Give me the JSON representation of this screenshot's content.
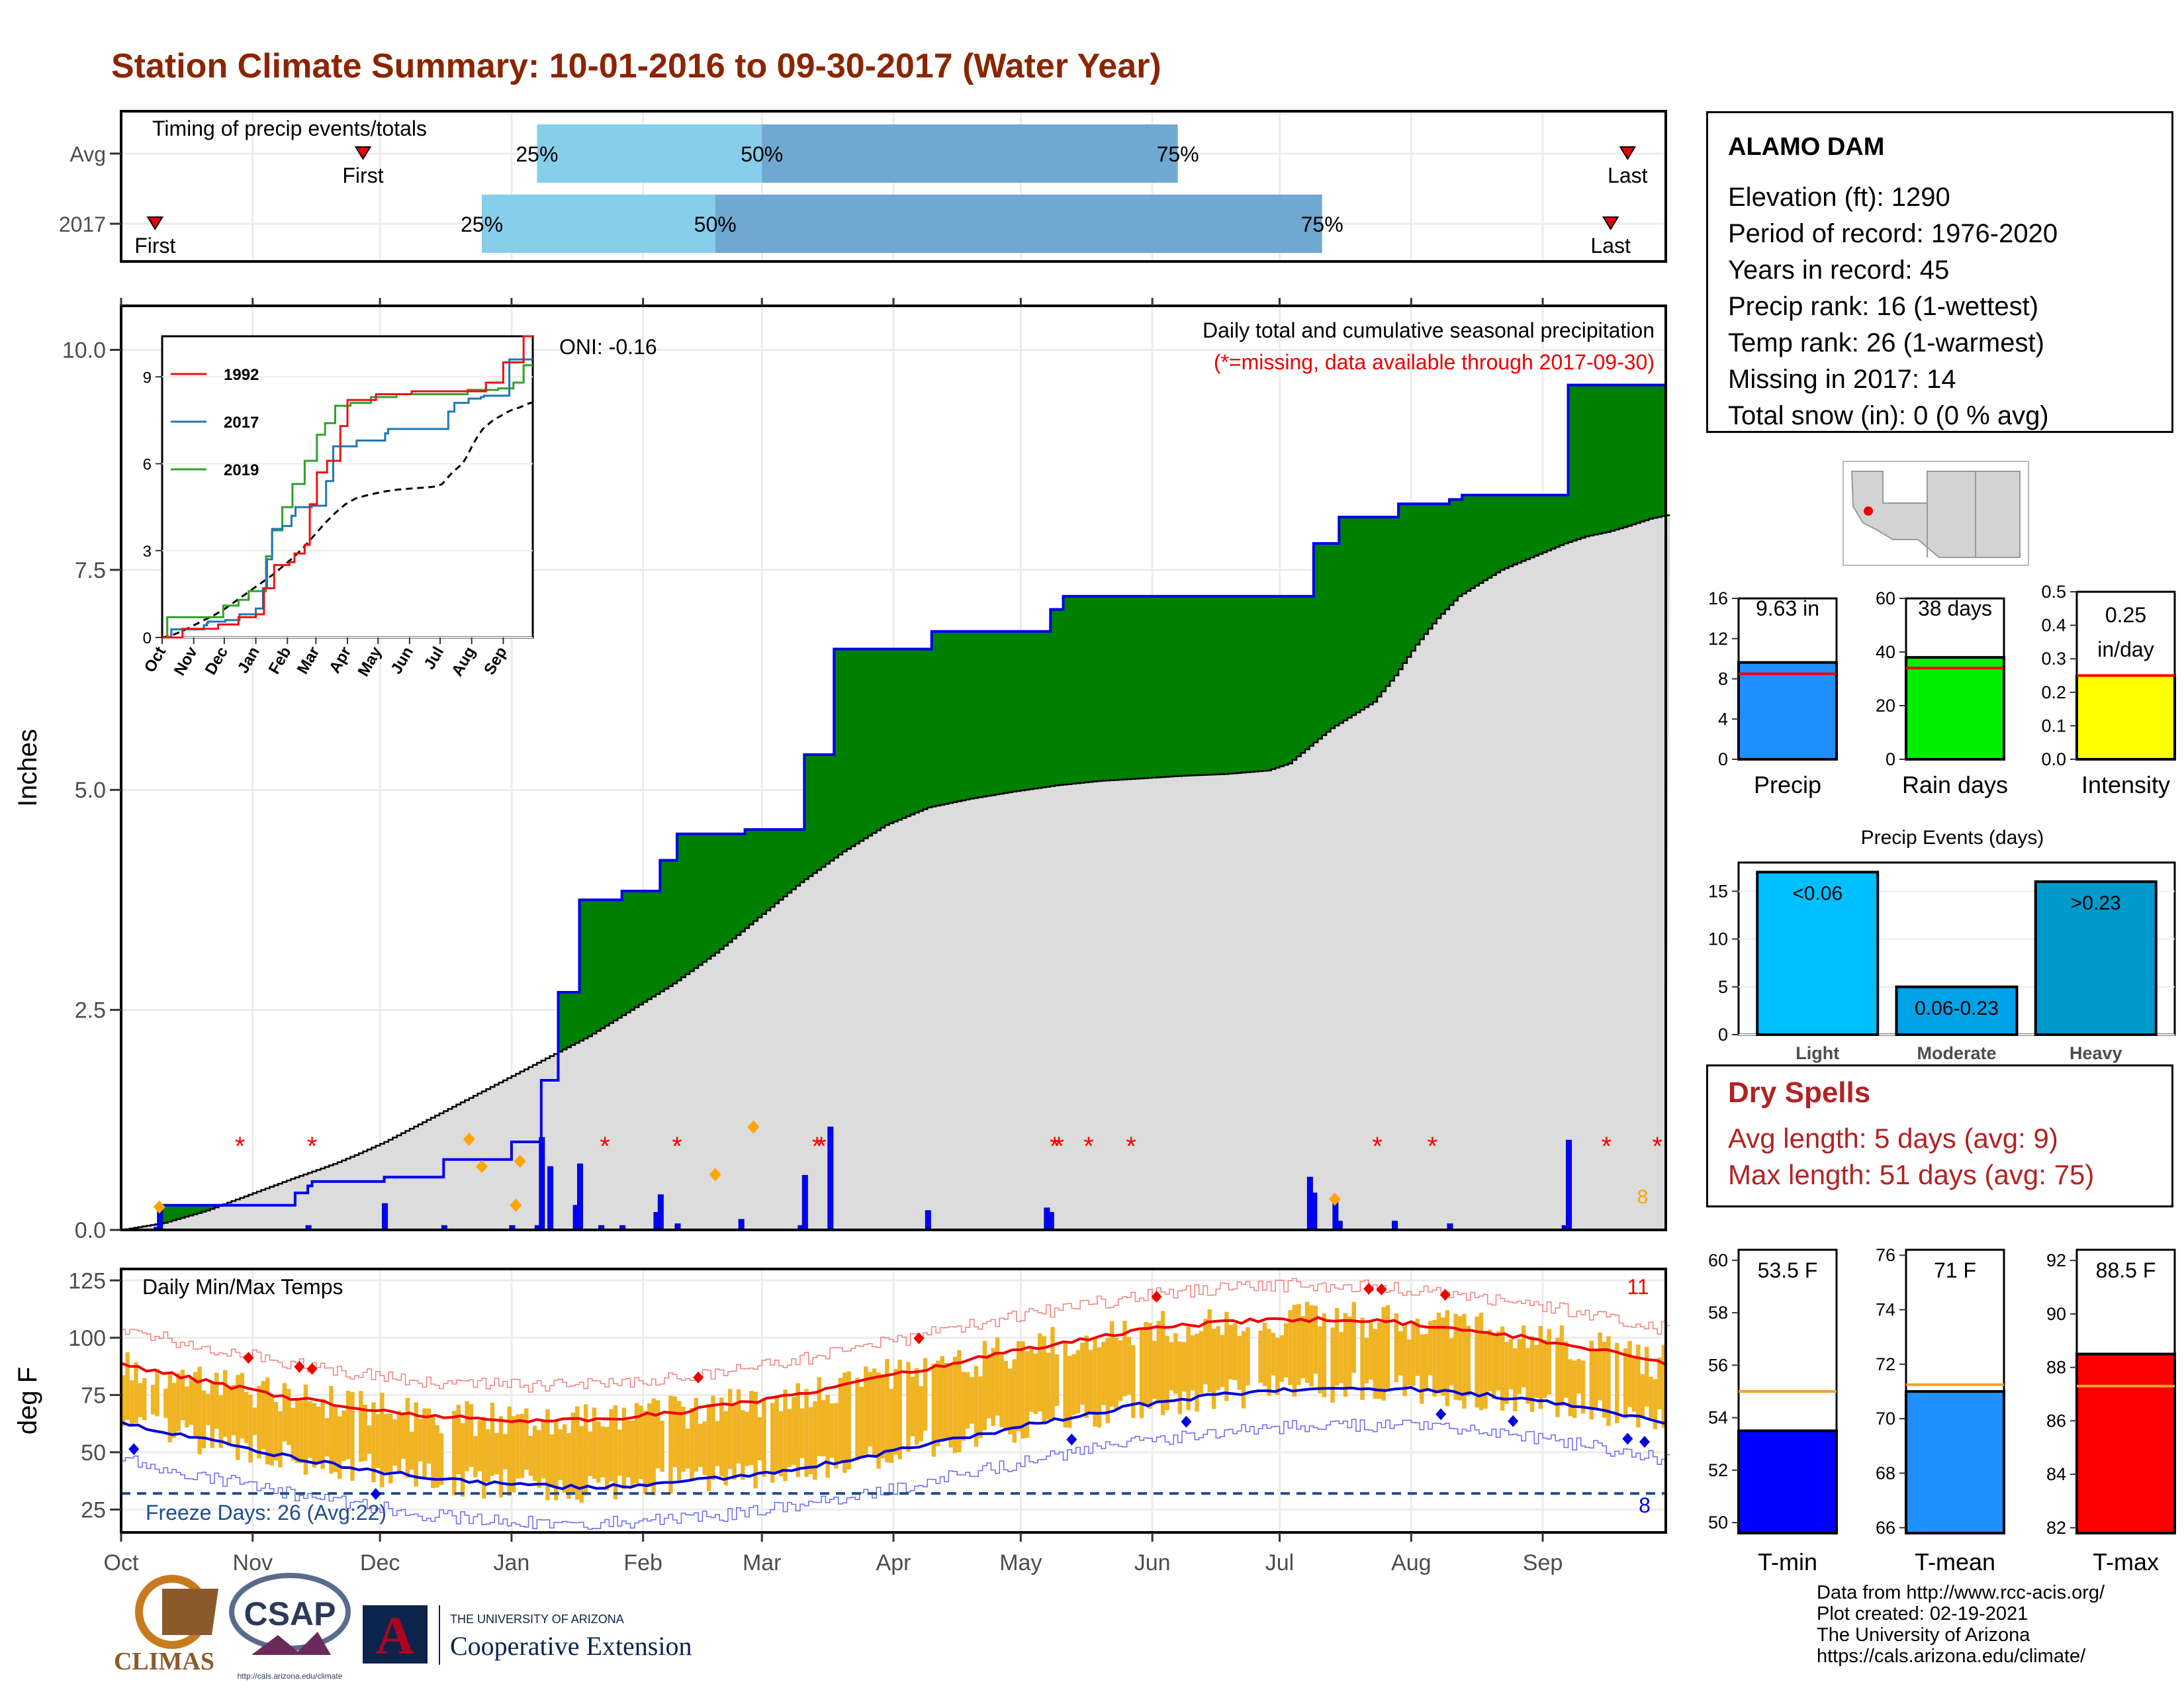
{
  "title": "Station Climate Summary: 10-01-2016 to 09-30-2017 (Water Year)",
  "station": {
    "name": "ALAMO DAM",
    "elevation": "Elevation (ft): 1290",
    "period": "Period of record: 1976-2020",
    "years": "Years in record: 45",
    "precip_rank": "Precip rank: 16 (1-wettest)",
    "temp_rank": "Temp rank: 26 (1-warmest)",
    "missing": "Missing in 2017: 14",
    "snow": "Total snow (in): 0 (0 % avg)"
  },
  "dry_spells": {
    "title": "Dry Spells",
    "avg": "Avg length: 5 days (avg: 9)",
    "max": "Max length: 51 days (avg: 75)"
  },
  "footer": {
    "line1": "Data from http://www.rcc-acis.org/",
    "line2": "Plot created: 02-19-2021",
    "line3": "The University of Arizona",
    "line4": "https://cals.arizona.edu/climate/"
  },
  "logos": {
    "climas": "CLIMAS",
    "csap": "CSAP",
    "csap_url": "http://cals.arizona.edu/climate",
    "ua_line1": "THE UNIVERSITY OF ARIZONA",
    "ua_line2": "Cooperative Extension",
    "ua_letter": "A"
  },
  "chart_data": [
    {
      "type": "bar",
      "name": "timing",
      "title": "Timing of precip events/totals",
      "categories": [
        "Avg",
        "2017"
      ],
      "avg": {
        "first": "Nov 27",
        "p25": "Jan 7",
        "p50": "Mar 1",
        "p75": "Jun 7",
        "last": "Sep 21"
      },
      "y2017": {
        "first": "Oct 9",
        "p25": "Dec 25",
        "p50": "Feb 18",
        "p75": "Jul 11",
        "last": "Sep 17"
      },
      "labels": {
        "first": "First",
        "last": "Last",
        "p25": "25%",
        "p50": "50%",
        "p75": "75%"
      },
      "colors": {
        "light": "#87ceeb",
        "dark": "#6fa8d0",
        "marker": "#ee0000"
      }
    },
    {
      "type": "area",
      "name": "cumulative_precip",
      "title": "Daily total and cumulative seasonal precipitation",
      "subtitle": "(*=missing, data available through 2017-09-30)",
      "oni": "ONI: -0.16",
      "ylabel": "Inches",
      "ylim": [
        0,
        10.5
      ],
      "yticks": [
        0.0,
        2.5,
        5.0,
        7.5,
        10.0
      ],
      "ytick_labels": [
        "0.0",
        "2.5",
        "5.0",
        "7.5",
        "10.0"
      ],
      "xticks": [
        "Oct",
        "Nov",
        "Dec",
        "Jan",
        "Feb",
        "Mar",
        "Apr",
        "May",
        "Jun",
        "Jul",
        "Aug",
        "Sep"
      ],
      "cumulative_2017": [
        [
          0,
          0
        ],
        [
          8,
          0.02
        ],
        [
          9,
          0.28
        ],
        [
          40,
          0.28
        ],
        [
          41,
          0.42
        ],
        [
          44,
          0.5
        ],
        [
          45,
          0.55
        ],
        [
          61,
          0.55
        ],
        [
          62,
          0.6
        ],
        [
          76,
          0.8
        ],
        [
          91,
          0.8
        ],
        [
          92,
          1.0
        ],
        [
          98,
          1.0
        ],
        [
          99,
          1.7
        ],
        [
          102,
          1.7
        ],
        [
          103,
          2.7
        ],
        [
          107,
          2.7
        ],
        [
          108,
          3.75
        ],
        [
          117,
          3.75
        ],
        [
          118,
          3.85
        ],
        [
          126,
          3.85
        ],
        [
          127,
          4.2
        ],
        [
          130,
          4.2
        ],
        [
          131,
          4.5
        ],
        [
          146,
          4.5
        ],
        [
          147,
          4.55
        ],
        [
          160,
          4.55
        ],
        [
          161,
          5.4
        ],
        [
          167,
          5.4
        ],
        [
          168,
          6.6
        ],
        [
          190,
          6.6
        ],
        [
          191,
          6.8
        ],
        [
          218,
          6.8
        ],
        [
          219,
          7.05
        ],
        [
          222,
          7.2
        ],
        [
          280,
          7.2
        ],
        [
          281,
          7.8
        ],
        [
          286,
          7.8
        ],
        [
          287,
          8.1
        ],
        [
          300,
          8.1
        ],
        [
          301,
          8.25
        ],
        [
          313,
          8.3
        ],
        [
          316,
          8.35
        ],
        [
          340,
          8.35
        ],
        [
          341,
          9.6
        ],
        [
          364,
          9.6
        ]
      ],
      "cumulative_avg": [
        [
          0,
          0
        ],
        [
          10,
          0.08
        ],
        [
          20,
          0.22
        ],
        [
          30,
          0.4
        ],
        [
          40,
          0.58
        ],
        [
          50,
          0.75
        ],
        [
          55,
          0.85
        ],
        [
          62,
          1.0
        ],
        [
          70,
          1.2
        ],
        [
          80,
          1.45
        ],
        [
          90,
          1.7
        ],
        [
          100,
          1.95
        ],
        [
          110,
          2.2
        ],
        [
          120,
          2.5
        ],
        [
          130,
          2.8
        ],
        [
          140,
          3.15
        ],
        [
          150,
          3.55
        ],
        [
          160,
          3.95
        ],
        [
          170,
          4.3
        ],
        [
          180,
          4.6
        ],
        [
          190,
          4.8
        ],
        [
          200,
          4.9
        ],
        [
          210,
          4.98
        ],
        [
          220,
          5.05
        ],
        [
          230,
          5.1
        ],
        [
          240,
          5.13
        ],
        [
          250,
          5.16
        ],
        [
          260,
          5.18
        ],
        [
          270,
          5.22
        ],
        [
          275,
          5.3
        ],
        [
          280,
          5.5
        ],
        [
          285,
          5.7
        ],
        [
          290,
          5.85
        ],
        [
          295,
          6.0
        ],
        [
          300,
          6.3
        ],
        [
          305,
          6.65
        ],
        [
          310,
          6.95
        ],
        [
          315,
          7.2
        ],
        [
          320,
          7.35
        ],
        [
          325,
          7.5
        ],
        [
          330,
          7.6
        ],
        [
          335,
          7.7
        ],
        [
          340,
          7.8
        ],
        [
          345,
          7.88
        ],
        [
          350,
          7.93
        ],
        [
          355,
          8.0
        ],
        [
          360,
          8.08
        ],
        [
          364,
          8.12
        ]
      ],
      "daily": [
        [
          9,
          0.26
        ],
        [
          44,
          0.05
        ],
        [
          62,
          0.3
        ],
        [
          76,
          0.05
        ],
        [
          92,
          0.05
        ],
        [
          98,
          0.05
        ],
        [
          99,
          1.05
        ],
        [
          101,
          0.72
        ],
        [
          107,
          0.28
        ],
        [
          108,
          0.75
        ],
        [
          113,
          0.05
        ],
        [
          118,
          0.05
        ],
        [
          126,
          0.2
        ],
        [
          127,
          0.4
        ],
        [
          131,
          0.07
        ],
        [
          146,
          0.12
        ],
        [
          160,
          0.05
        ],
        [
          161,
          0.62
        ],
        [
          167,
          1.17
        ],
        [
          190,
          0.22
        ],
        [
          218,
          0.25
        ],
        [
          219,
          0.2
        ],
        [
          280,
          0.6
        ],
        [
          281,
          0.42
        ],
        [
          286,
          0.35
        ],
        [
          287,
          0.1
        ],
        [
          300,
          0.1
        ],
        [
          313,
          0.07
        ],
        [
          340,
          0.05
        ],
        [
          341,
          1.02
        ]
      ],
      "missing_days": [
        28,
        45,
        114,
        131,
        164,
        165,
        220,
        221,
        228,
        238,
        296,
        309,
        350,
        362
      ],
      "orange_days": [
        [
          9,
          0.26
        ],
        [
          82,
          1.03
        ],
        [
          85,
          0.72
        ],
        [
          93,
          0.28
        ],
        [
          94,
          0.78
        ],
        [
          140,
          0.63
        ],
        [
          149,
          1.17
        ],
        [
          286,
          0.35
        ]
      ],
      "orange_count": "8",
      "colors": {
        "above": "#008000",
        "below": "#8b5a00",
        "avg_fill": "#dcdcdc",
        "line": "#0000ee",
        "missing": "#ff0000"
      }
    },
    {
      "type": "line",
      "name": "inset_cumulative",
      "series": [
        {
          "name": "1992",
          "color": "#ee1111"
        },
        {
          "name": "2017",
          "color": "#1f78b4"
        },
        {
          "name": "2019",
          "color": "#33a02c"
        }
      ],
      "yticks": [
        0,
        3,
        6,
        9
      ],
      "xticks": [
        "Oct",
        "Nov",
        "Dec",
        "Jan",
        "Feb",
        "Mar",
        "Apr",
        "May",
        "Jun",
        "Jul",
        "Aug",
        "Sep"
      ]
    },
    {
      "type": "bar",
      "name": "precip_summary",
      "panels": [
        {
          "label": "Precip",
          "value": 9.63,
          "text": "9.63 in",
          "avg": 8.5,
          "ylim": [
            0,
            16
          ],
          "yticks": [
            "0",
            "4",
            "8",
            "12",
            "16"
          ],
          "color": "#1e90ff"
        },
        {
          "label": "Rain days",
          "value": 38,
          "text": "38 days",
          "avg": 34,
          "ylim": [
            0,
            60
          ],
          "yticks": [
            "0",
            "20",
            "40",
            "60"
          ],
          "color": "#00ee00"
        },
        {
          "label": "Intensity",
          "value": 0.25,
          "text": "0.25",
          "text2": "in/day",
          "avg": 0.25,
          "ylim": [
            0,
            0.5
          ],
          "yticks": [
            "0.0",
            "0.1",
            "0.2",
            "0.3",
            "0.4",
            "0.5"
          ],
          "color": "#ffff00"
        }
      ]
    },
    {
      "type": "bar",
      "name": "precip_events",
      "title": "Precip Events (days)",
      "categories": [
        "Light",
        "Moderate",
        "Heavy"
      ],
      "values": [
        17,
        5,
        16
      ],
      "bar_labels": [
        "<0.06",
        "0.06-0.23",
        ">0.23"
      ],
      "yticks": [
        "0",
        "5",
        "10",
        "15"
      ],
      "colors": [
        "#00bfff",
        "#00a2e8",
        "#0099cc"
      ]
    },
    {
      "type": "line",
      "name": "temps",
      "title": "Daily Min/Max Temps",
      "ylabel": "deg F",
      "ylim": [
        15,
        130
      ],
      "yticks": [
        25,
        50,
        75,
        100,
        125
      ],
      "freeze_line": 32,
      "freeze_label": "Freeze Days: 26 (Avg:22)",
      "red_count": "11",
      "blue_count": "8",
      "xticks": [
        "Oct",
        "Nov",
        "Dec",
        "Jan",
        "Feb",
        "Mar",
        "Apr",
        "May",
        "Jun",
        "Jul",
        "Aug",
        "Sep"
      ],
      "colors": {
        "bars": "#f0b323",
        "max_avg": "#ee0000",
        "min_avg": "#0000dd",
        "max_rec": "#f08080",
        "min_rec": "#6a6af0"
      }
    },
    {
      "type": "bar",
      "name": "temp_summary",
      "panels": [
        {
          "label": "T-min",
          "value": 53.5,
          "text": "53.5 F",
          "avg": 55.0,
          "ylim": [
            49.6,
            60.4
          ],
          "yticks": [
            "50",
            "52",
            "54",
            "56",
            "58",
            "60"
          ],
          "color": "#0000ff"
        },
        {
          "label": "T-mean",
          "value": 71.0,
          "text": "71 F",
          "avg": 71.25,
          "ylim": [
            65.8,
            76.2
          ],
          "yticks": [
            "66",
            "68",
            "70",
            "72",
            "74",
            "76"
          ],
          "color": "#1e90ff"
        },
        {
          "label": "T-max",
          "value": 88.5,
          "text": "88.5 F",
          "avg": 87.3,
          "ylim": [
            81.8,
            92.4
          ],
          "yticks": [
            "82",
            "84",
            "86",
            "88",
            "90",
            "92"
          ],
          "color": "#ff0000"
        }
      ]
    }
  ]
}
